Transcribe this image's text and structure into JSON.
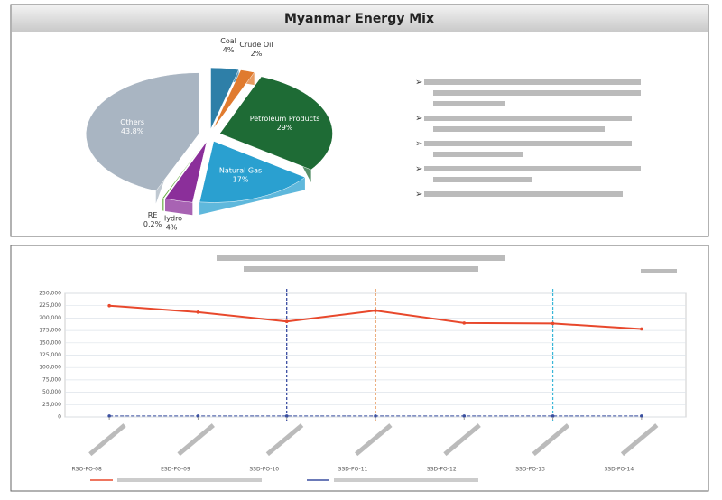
{
  "header": {
    "title": "Myanmar Energy Mix"
  },
  "chart_data": [
    {
      "type": "pie",
      "categories": [
        "Coal",
        "Crude Oil",
        "Petroleum Products",
        "Natural Gas",
        "Hydro",
        "RE",
        "Others"
      ],
      "values": [
        4,
        2,
        29,
        17,
        4,
        0.2,
        43.8
      ],
      "value_labels": [
        "4%",
        "2%",
        "29%",
        "17%",
        "4%",
        "0.2%",
        "43.8%"
      ],
      "colors": [
        "#2e7fa8",
        "#e07b2f",
        "#1e6b35",
        "#2aa0d0",
        "#8b2f9a",
        "#5aa832",
        "#a9b5c2"
      ]
    },
    {
      "type": "line",
      "categories": [
        "RSO-PO-08",
        "ESD-PO-09",
        "SSD-PO-10",
        "SSD-PO-11",
        "SSD-PO-12",
        "SSD-PO-13",
        "SSD-PO-14"
      ],
      "series": [
        {
          "color": "#e8482c",
          "values": [
            225000,
            212000,
            193000,
            215000,
            190000,
            189000,
            178000
          ]
        },
        {
          "color": "#3a4fa0",
          "values": [
            2000,
            2000,
            2000,
            2000,
            2000,
            2000,
            2000
          ]
        }
      ],
      "ylim": [
        0,
        250000
      ],
      "yticks": [
        {
          "value": 0,
          "label": "0"
        },
        {
          "value": 25000,
          "label": "25,000"
        },
        {
          "value": 50000,
          "label": "50,000"
        },
        {
          "value": 75000,
          "label": "75,000"
        },
        {
          "value": 100000,
          "label": "100,000"
        },
        {
          "value": 125000,
          "label": "125,000"
        },
        {
          "value": 150000,
          "label": "150,000"
        },
        {
          "value": 175000,
          "label": "175,000"
        },
        {
          "value": 200000,
          "label": "200,000"
        },
        {
          "value": 225000,
          "label": "225,000"
        },
        {
          "value": 250000,
          "label": "250,000"
        }
      ],
      "grid": true
    }
  ]
}
